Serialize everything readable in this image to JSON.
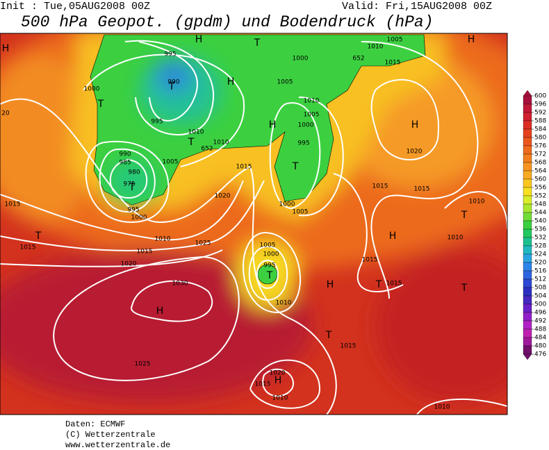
{
  "header": {
    "init": "Init : Tue,05AUG2008 00Z",
    "valid": "Valid: Fri,15AUG2008 00Z",
    "title": "500 hPa Geopot. (gpdm) und Bodendruck (hPa)"
  },
  "map": {
    "isobar_labels": [
      "995",
      "990",
      "1000",
      "1005",
      "1010",
      "1005",
      "1015",
      "1000",
      "995",
      "1010",
      "1010",
      "990",
      "985",
      "980",
      "975",
      "1005",
      "1015",
      "1010",
      "1005",
      "1000",
      "995",
      "20",
      "1015",
      "995",
      "1000",
      "1020",
      "1000",
      "1005",
      "1015",
      "1015",
      "1010",
      "1015",
      "1010",
      "1015",
      "1025",
      "1020",
      "1005",
      "1000",
      "995",
      "1015",
      "1015",
      "1010",
      "1030",
      "1010",
      "1015",
      "1025",
      "1020",
      "1015",
      "1010",
      "1010",
      "1020",
      "652",
      "652"
    ],
    "pressure_centers": [
      "H",
      "T",
      "H",
      "T",
      "T",
      "H",
      "H",
      "T",
      "T",
      "T",
      "T",
      "T",
      "H",
      "H",
      "T",
      "T",
      "T",
      "H",
      "T",
      "H",
      "H",
      "H"
    ]
  },
  "colorbar": {
    "levels": [
      600,
      596,
      592,
      588,
      584,
      580,
      576,
      572,
      568,
      564,
      560,
      556,
      552,
      548,
      544,
      540,
      536,
      532,
      528,
      524,
      520,
      516,
      512,
      508,
      504,
      500,
      496,
      492,
      488,
      484,
      480,
      476
    ],
    "colors": [
      "#a8103c",
      "#c01838",
      "#d02030",
      "#dc2e24",
      "#e4421e",
      "#ea561c",
      "#ee6a1c",
      "#f27e1e",
      "#f69422",
      "#f8aa22",
      "#fac620",
      "#f6e020",
      "#d8ec28",
      "#a8e630",
      "#70dc38",
      "#3cd040",
      "#22c860",
      "#1ec090",
      "#22b8c0",
      "#2aa4e0",
      "#2c84e8",
      "#2c64e0",
      "#2c48d4",
      "#2c30c0",
      "#4428c0",
      "#6a20c8",
      "#9020c8",
      "#b020c4",
      "#c020b0",
      "#a0189c",
      "#70106c"
    ]
  },
  "footer": {
    "lines": [
      "Daten: ECMWF",
      "(C) Wetterzentrale",
      "www.wetterzentrale.de"
    ]
  }
}
